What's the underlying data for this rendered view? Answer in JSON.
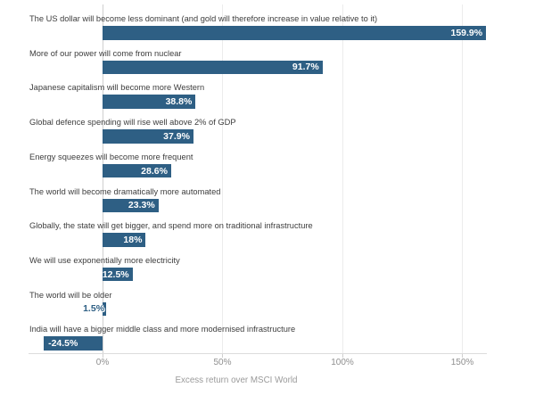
{
  "chart_data": {
    "type": "bar",
    "orientation": "horizontal",
    "title": "",
    "xlabel": "Excess return over MSCI World",
    "ylabel": "",
    "xlim": [
      -31,
      160
    ],
    "grid": true,
    "legend": "none",
    "categories": [
      "The US dollar will become less dominant (and gold will therefore increase in value relative to it)",
      "More of our power will come from nuclear",
      "Japanese capitalism will become more Western",
      "Global defence spending will rise well above 2% of GDP",
      "Energy squeezes will become more frequent",
      "The world will become dramatically more automated",
      "Globally, the state will get bigger, and spend more on traditional infrastructure",
      "We will use exponentially more electricity",
      "The world will be older",
      "India will have a bigger middle class and more modernised infrastructure"
    ],
    "values": [
      159.9,
      91.7,
      38.8,
      37.9,
      28.6,
      23.3,
      18,
      12.5,
      1.5,
      -24.5
    ],
    "value_labels": [
      "159.9%",
      "91.7%",
      "38.8%",
      "37.9%",
      "28.6%",
      "23.3%",
      "18%",
      "12.5%",
      "1.5%",
      "-24.5%"
    ],
    "x_ticks": [
      {
        "value": 0,
        "label": "0%"
      },
      {
        "value": 50,
        "label": "50%"
      },
      {
        "value": 100,
        "label": "100%"
      },
      {
        "value": 150,
        "label": "150%"
      }
    ],
    "colors": {
      "bar": "#2e5f84",
      "category_label": "#3d3d3d",
      "value_inside": "#ffffff",
      "value_outside": "#2e5f84",
      "tick_label": "#8f8f8f",
      "axis_title": "#9a9a9a",
      "gridline": "#ececec",
      "zero_line": "#cfcfcf",
      "axis_line": "#dcdcdc"
    }
  }
}
